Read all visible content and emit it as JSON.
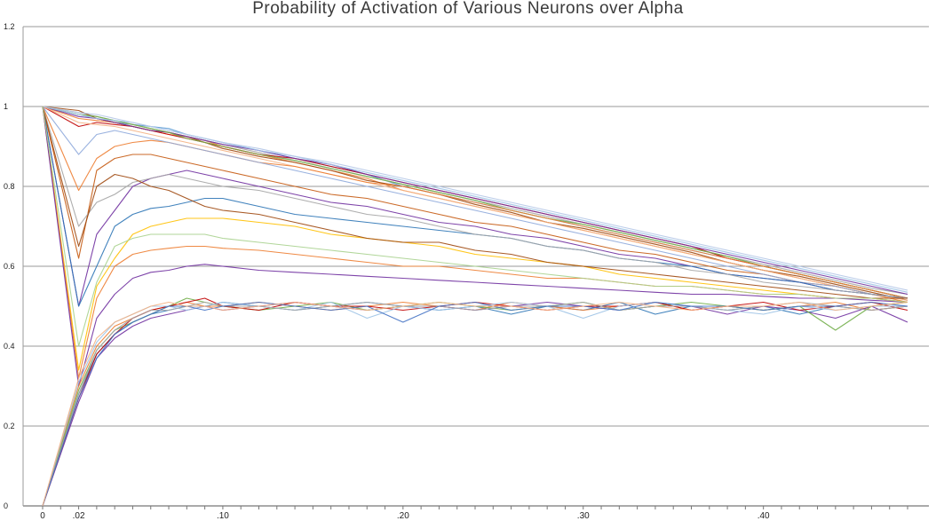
{
  "chart_data": {
    "type": "line",
    "title": "Probability of Activation of Various Neurons over Alpha",
    "xlabel": "",
    "ylabel": "",
    "ylim": [
      0,
      1.2
    ],
    "y_ticks": [
      "0",
      "0.2",
      "0.4",
      "0.6",
      "0.8",
      "1",
      "1.2"
    ],
    "x_tick_labels": [
      {
        "value": 0,
        "label": "0"
      },
      {
        "value": 0.02,
        "label": ".02"
      },
      {
        "value": 0.1,
        "label": ".10"
      },
      {
        "value": 0.2,
        "label": ".20"
      },
      {
        "value": 0.3,
        "label": ".30"
      },
      {
        "value": 0.4,
        "label": ".40"
      }
    ],
    "xlim": [
      0,
      0.48
    ],
    "grid": true,
    "x": [
      0,
      0.02,
      0.03,
      0.04,
      0.05,
      0.06,
      0.07,
      0.08,
      0.09,
      0.1,
      0.12,
      0.14,
      0.16,
      0.18,
      0.2,
      0.22,
      0.24,
      0.26,
      0.28,
      0.3,
      0.32,
      0.34,
      0.36,
      0.38,
      0.4,
      0.42,
      0.44,
      0.46,
      0.48
    ],
    "series": [
      {
        "color": "#5b9bd5",
        "values": [
          1,
          0.98,
          0.97,
          0.96,
          0.955,
          0.95,
          0.945,
          0.93,
          0.92,
          0.91,
          0.89,
          0.87,
          0.85,
          0.83,
          0.8,
          0.78,
          0.76,
          0.74,
          0.72,
          0.7,
          0.68,
          0.66,
          0.64,
          0.62,
          0.6,
          0.58,
          0.56,
          0.54,
          0.52
        ]
      },
      {
        "color": "#ed7d31",
        "values": [
          1,
          0.97,
          0.965,
          0.96,
          0.95,
          0.94,
          0.93,
          0.925,
          0.915,
          0.9,
          0.88,
          0.86,
          0.84,
          0.82,
          0.79,
          0.77,
          0.75,
          0.73,
          0.71,
          0.69,
          0.67,
          0.65,
          0.63,
          0.61,
          0.59,
          0.57,
          0.55,
          0.53,
          0.51
        ]
      },
      {
        "color": "#a5a5a5",
        "values": [
          1,
          0.985,
          0.975,
          0.965,
          0.955,
          0.945,
          0.935,
          0.925,
          0.915,
          0.905,
          0.885,
          0.865,
          0.845,
          0.825,
          0.805,
          0.785,
          0.765,
          0.745,
          0.725,
          0.705,
          0.685,
          0.665,
          0.645,
          0.625,
          0.605,
          0.585,
          0.565,
          0.545,
          0.53
        ]
      },
      {
        "color": "#c00000",
        "values": [
          1,
          0.95,
          0.96,
          0.955,
          0.95,
          0.94,
          0.93,
          0.92,
          0.91,
          0.9,
          0.88,
          0.87,
          0.85,
          0.83,
          0.81,
          0.79,
          0.77,
          0.75,
          0.73,
          0.71,
          0.69,
          0.67,
          0.65,
          0.62,
          0.6,
          0.58,
          0.56,
          0.54,
          0.52
        ]
      },
      {
        "color": "#9e480e",
        "values": [
          1,
          0.99,
          0.97,
          0.96,
          0.95,
          0.94,
          0.935,
          0.925,
          0.91,
          0.895,
          0.875,
          0.86,
          0.84,
          0.815,
          0.8,
          0.78,
          0.755,
          0.735,
          0.71,
          0.695,
          0.675,
          0.655,
          0.635,
          0.61,
          0.59,
          0.575,
          0.555,
          0.535,
          0.515
        ]
      },
      {
        "color": "#7030a0",
        "values": [
          1,
          0.975,
          0.97,
          0.96,
          0.95,
          0.94,
          0.935,
          0.925,
          0.915,
          0.905,
          0.89,
          0.87,
          0.855,
          0.83,
          0.81,
          0.79,
          0.77,
          0.75,
          0.73,
          0.71,
          0.69,
          0.67,
          0.65,
          0.63,
          0.61,
          0.59,
          0.57,
          0.55,
          0.53
        ]
      },
      {
        "color": "#70ad47",
        "values": [
          1,
          0.98,
          0.975,
          0.965,
          0.955,
          0.945,
          0.935,
          0.92,
          0.91,
          0.9,
          0.88,
          0.865,
          0.845,
          0.825,
          0.805,
          0.785,
          0.765,
          0.74,
          0.72,
          0.705,
          0.685,
          0.665,
          0.645,
          0.625,
          0.6,
          0.58,
          0.56,
          0.54,
          0.52
        ]
      },
      {
        "color": "#9dc3e6",
        "values": [
          1,
          0.98,
          0.97,
          0.965,
          0.96,
          0.95,
          0.94,
          0.93,
          0.92,
          0.91,
          0.89,
          0.875,
          0.855,
          0.835,
          0.815,
          0.795,
          0.775,
          0.755,
          0.735,
          0.715,
          0.695,
          0.675,
          0.655,
          0.635,
          0.615,
          0.595,
          0.575,
          0.555,
          0.535
        ]
      },
      {
        "color": "#f4b183",
        "values": [
          1,
          0.96,
          0.955,
          0.95,
          0.94,
          0.93,
          0.92,
          0.91,
          0.9,
          0.89,
          0.87,
          0.85,
          0.83,
          0.81,
          0.79,
          0.77,
          0.75,
          0.73,
          0.71,
          0.69,
          0.67,
          0.65,
          0.63,
          0.61,
          0.59,
          0.57,
          0.55,
          0.53,
          0.515
        ]
      },
      {
        "color": "#b4c7e7",
        "values": [
          1,
          0.985,
          0.98,
          0.97,
          0.96,
          0.95,
          0.94,
          0.93,
          0.92,
          0.91,
          0.895,
          0.875,
          0.86,
          0.84,
          0.82,
          0.8,
          0.78,
          0.76,
          0.74,
          0.72,
          0.7,
          0.68,
          0.66,
          0.64,
          0.62,
          0.6,
          0.58,
          0.56,
          0.54
        ]
      },
      {
        "color": "#ed7d31",
        "values": [
          1,
          0.79,
          0.87,
          0.9,
          0.91,
          0.915,
          0.91,
          0.9,
          0.89,
          0.88,
          0.86,
          0.85,
          0.83,
          0.81,
          0.8,
          0.78,
          0.76,
          0.74,
          0.72,
          0.7,
          0.68,
          0.66,
          0.64,
          0.62,
          0.6,
          0.58,
          0.56,
          0.54,
          0.52
        ]
      },
      {
        "color": "#c55a11",
        "values": [
          1,
          0.62,
          0.84,
          0.87,
          0.88,
          0.88,
          0.87,
          0.86,
          0.85,
          0.84,
          0.82,
          0.8,
          0.78,
          0.77,
          0.75,
          0.73,
          0.71,
          0.7,
          0.68,
          0.66,
          0.64,
          0.63,
          0.61,
          0.59,
          0.58,
          0.56,
          0.55,
          0.53,
          0.52
        ]
      },
      {
        "color": "#8faadc",
        "values": [
          1,
          0.88,
          0.93,
          0.94,
          0.93,
          0.92,
          0.91,
          0.9,
          0.89,
          0.88,
          0.86,
          0.84,
          0.82,
          0.8,
          0.78,
          0.76,
          0.74,
          0.72,
          0.7,
          0.68,
          0.66,
          0.64,
          0.62,
          0.6,
          0.58,
          0.56,
          0.55,
          0.53,
          0.52
        ]
      },
      {
        "color": "#7030a0",
        "values": [
          1,
          0.5,
          0.68,
          0.74,
          0.8,
          0.82,
          0.83,
          0.84,
          0.83,
          0.82,
          0.8,
          0.78,
          0.76,
          0.75,
          0.73,
          0.71,
          0.7,
          0.68,
          0.67,
          0.65,
          0.63,
          0.62,
          0.6,
          0.58,
          0.57,
          0.56,
          0.54,
          0.53,
          0.52
        ]
      },
      {
        "color": "#2e75b6",
        "values": [
          1,
          0.5,
          0.6,
          0.7,
          0.73,
          0.745,
          0.75,
          0.76,
          0.77,
          0.77,
          0.75,
          0.73,
          0.72,
          0.71,
          0.7,
          0.69,
          0.68,
          0.67,
          0.65,
          0.64,
          0.62,
          0.61,
          0.6,
          0.58,
          0.57,
          0.56,
          0.54,
          0.53,
          0.52
        ]
      },
      {
        "color": "#a5a5a5",
        "values": [
          1,
          0.7,
          0.76,
          0.78,
          0.81,
          0.82,
          0.83,
          0.82,
          0.81,
          0.8,
          0.79,
          0.77,
          0.75,
          0.73,
          0.72,
          0.7,
          0.68,
          0.67,
          0.65,
          0.64,
          0.62,
          0.61,
          0.59,
          0.58,
          0.56,
          0.55,
          0.54,
          0.53,
          0.52
        ]
      },
      {
        "color": "#ffc000",
        "values": [
          1,
          0.34,
          0.55,
          0.62,
          0.68,
          0.7,
          0.71,
          0.72,
          0.72,
          0.72,
          0.71,
          0.7,
          0.68,
          0.67,
          0.66,
          0.65,
          0.63,
          0.62,
          0.61,
          0.6,
          0.58,
          0.57,
          0.56,
          0.55,
          0.54,
          0.53,
          0.52,
          0.52,
          0.51
        ]
      },
      {
        "color": "#ed7d31",
        "values": [
          1,
          0.32,
          0.52,
          0.6,
          0.63,
          0.64,
          0.645,
          0.65,
          0.65,
          0.645,
          0.64,
          0.63,
          0.62,
          0.61,
          0.6,
          0.6,
          0.59,
          0.58,
          0.57,
          0.57,
          0.56,
          0.55,
          0.55,
          0.54,
          0.53,
          0.53,
          0.52,
          0.52,
          0.51
        ]
      },
      {
        "color": "#7030a0",
        "values": [
          1,
          0.3,
          0.47,
          0.53,
          0.57,
          0.585,
          0.59,
          0.6,
          0.605,
          0.6,
          0.59,
          0.585,
          0.58,
          0.575,
          0.57,
          0.565,
          0.56,
          0.555,
          0.55,
          0.545,
          0.54,
          0.535,
          0.53,
          0.53,
          0.525,
          0.52,
          0.52,
          0.515,
          0.51
        ]
      },
      {
        "color": "#9e480e",
        "values": [
          1,
          0.65,
          0.8,
          0.83,
          0.82,
          0.8,
          0.79,
          0.77,
          0.75,
          0.74,
          0.73,
          0.71,
          0.69,
          0.67,
          0.66,
          0.66,
          0.64,
          0.63,
          0.61,
          0.6,
          0.59,
          0.58,
          0.57,
          0.56,
          0.55,
          0.54,
          0.53,
          0.52,
          0.52
        ]
      },
      {
        "color": "#a9d18e",
        "values": [
          1,
          0.4,
          0.56,
          0.65,
          0.67,
          0.68,
          0.68,
          0.68,
          0.68,
          0.67,
          0.66,
          0.65,
          0.64,
          0.63,
          0.62,
          0.61,
          0.6,
          0.59,
          0.58,
          0.57,
          0.56,
          0.55,
          0.55,
          0.54,
          0.53,
          0.53,
          0.52,
          0.52,
          0.51
        ]
      },
      {
        "color": "#2e75b6",
        "values": [
          0,
          0.28,
          0.38,
          0.43,
          0.46,
          0.48,
          0.49,
          0.5,
          0.5,
          0.51,
          0.5,
          0.49,
          0.5,
          0.51,
          0.5,
          0.49,
          0.5,
          0.48,
          0.5,
          0.49,
          0.51,
          0.48,
          0.5,
          0.49,
          0.5,
          0.48,
          0.5,
          0.49,
          0.5
        ]
      },
      {
        "color": "#ed7d31",
        "values": [
          0,
          0.3,
          0.4,
          0.45,
          0.47,
          0.49,
          0.5,
          0.51,
          0.5,
          0.5,
          0.51,
          0.5,
          0.49,
          0.5,
          0.51,
          0.5,
          0.49,
          0.51,
          0.5,
          0.49,
          0.5,
          0.51,
          0.49,
          0.5,
          0.49,
          0.5,
          0.51,
          0.49,
          0.5
        ]
      },
      {
        "color": "#7030a0",
        "values": [
          0,
          0.26,
          0.37,
          0.42,
          0.45,
          0.47,
          0.48,
          0.49,
          0.5,
          0.49,
          0.5,
          0.51,
          0.5,
          0.49,
          0.5,
          0.5,
          0.49,
          0.5,
          0.51,
          0.5,
          0.49,
          0.5,
          0.5,
          0.48,
          0.5,
          0.49,
          0.47,
          0.5,
          0.46
        ]
      },
      {
        "color": "#70ad47",
        "values": [
          0,
          0.29,
          0.39,
          0.44,
          0.46,
          0.48,
          0.5,
          0.52,
          0.51,
          0.5,
          0.49,
          0.5,
          0.51,
          0.49,
          0.5,
          0.51,
          0.5,
          0.49,
          0.5,
          0.51,
          0.49,
          0.5,
          0.51,
          0.5,
          0.49,
          0.5,
          0.44,
          0.5,
          0.51
        ]
      },
      {
        "color": "#c00000",
        "values": [
          0,
          0.27,
          0.38,
          0.43,
          0.47,
          0.49,
          0.5,
          0.51,
          0.52,
          0.5,
          0.49,
          0.51,
          0.5,
          0.5,
          0.49,
          0.5,
          0.51,
          0.5,
          0.49,
          0.5,
          0.5,
          0.51,
          0.49,
          0.5,
          0.51,
          0.49,
          0.5,
          0.51,
          0.49
        ]
      },
      {
        "color": "#9dc3e6",
        "values": [
          0,
          0.31,
          0.41,
          0.46,
          0.48,
          0.5,
          0.5,
          0.49,
          0.5,
          0.51,
          0.5,
          0.49,
          0.51,
          0.47,
          0.5,
          0.49,
          0.5,
          0.51,
          0.5,
          0.47,
          0.5,
          0.51,
          0.5,
          0.49,
          0.48,
          0.5,
          0.49,
          0.5,
          0.5
        ]
      },
      {
        "color": "#a5a5a5",
        "values": [
          0,
          0.28,
          0.39,
          0.44,
          0.47,
          0.49,
          0.49,
          0.5,
          0.51,
          0.5,
          0.5,
          0.49,
          0.5,
          0.51,
          0.5,
          0.5,
          0.49,
          0.5,
          0.5,
          0.51,
          0.49,
          0.5,
          0.5,
          0.49,
          0.5,
          0.51,
          0.5,
          0.49,
          0.5
        ]
      },
      {
        "color": "#4472c4",
        "values": [
          0,
          0.27,
          0.37,
          0.43,
          0.46,
          0.48,
          0.5,
          0.5,
          0.49,
          0.5,
          0.51,
          0.5,
          0.49,
          0.5,
          0.46,
          0.5,
          0.51,
          0.49,
          0.5,
          0.5,
          0.49,
          0.51,
          0.5,
          0.5,
          0.49,
          0.5,
          0.5,
          0.51,
          0.5
        ]
      },
      {
        "color": "#f4b183",
        "values": [
          0,
          0.32,
          0.42,
          0.46,
          0.48,
          0.5,
          0.51,
          0.5,
          0.5,
          0.49,
          0.5,
          0.51,
          0.5,
          0.49,
          0.5,
          0.51,
          0.5,
          0.5,
          0.49,
          0.5,
          0.51,
          0.5,
          0.49,
          0.5,
          0.5,
          0.51,
          0.49,
          0.5,
          0.51
        ]
      }
    ]
  }
}
